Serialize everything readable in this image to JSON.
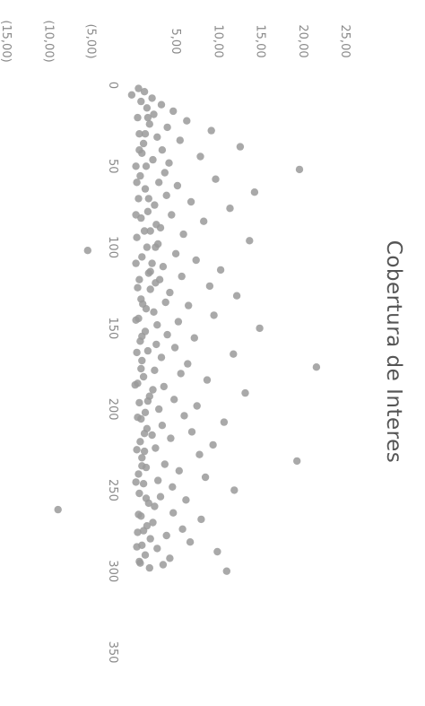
{
  "chart_data": {
    "type": "scatter",
    "title": "Cobertura de Interes",
    "xlabel": "",
    "ylabel": "",
    "xlim": [
      0,
      350
    ],
    "ylim": [
      -15,
      25
    ],
    "x_ticks": [
      "0",
      "50",
      "100",
      "150",
      "200",
      "250",
      "300",
      "350"
    ],
    "y_ticks": [
      "25,00",
      "20,00",
      "15,00",
      "10,00",
      "5,00",
      "",
      "(5,00)",
      "(10,00)",
      "(15,00)"
    ],
    "grid": false,
    "legend": "none",
    "orientation": "rotated 90 degrees clockwise",
    "marker_color": "#9a9a9a",
    "series": [
      {
        "points": [
          [
            2,
            0.5
          ],
          [
            4,
            1.2
          ],
          [
            6,
            -0.3
          ],
          [
            8,
            2.1
          ],
          [
            10,
            0.8
          ],
          [
            12,
            3.2
          ],
          [
            14,
            1.5
          ],
          [
            16,
            4.6
          ],
          [
            18,
            2.3
          ],
          [
            20,
            0.4
          ],
          [
            22,
            6.2
          ],
          [
            24,
            1.8
          ],
          [
            26,
            3.9
          ],
          [
            28,
            9.1
          ],
          [
            30,
            0.6
          ],
          [
            32,
            2.7
          ],
          [
            34,
            5.4
          ],
          [
            36,
            1.1
          ],
          [
            38,
            12.5
          ],
          [
            40,
            3.3
          ],
          [
            42,
            0.9
          ],
          [
            44,
            7.8
          ],
          [
            46,
            2.2
          ],
          [
            48,
            4.1
          ],
          [
            50,
            1.4
          ],
          [
            52,
            19.5
          ],
          [
            54,
            3.6
          ],
          [
            56,
            0.7
          ],
          [
            58,
            9.6
          ],
          [
            60,
            2.9
          ],
          [
            62,
            5.1
          ],
          [
            64,
            1.3
          ],
          [
            66,
            14.2
          ],
          [
            68,
            3.8
          ],
          [
            70,
            0.5
          ],
          [
            72,
            6.7
          ],
          [
            74,
            2.4
          ],
          [
            76,
            11.3
          ],
          [
            78,
            1.6
          ],
          [
            80,
            4.4
          ],
          [
            82,
            0.8
          ],
          [
            84,
            8.2
          ],
          [
            86,
            2.6
          ],
          [
            88,
            3.1
          ],
          [
            90,
            1.2
          ],
          [
            92,
            5.8
          ],
          [
            94,
            0.3
          ],
          [
            96,
            13.6
          ],
          [
            98,
            2.8
          ],
          [
            100,
            1.5
          ],
          [
            102,
            -5.5
          ],
          [
            104,
            4.9
          ],
          [
            106,
            0.9
          ],
          [
            108,
            7.3
          ],
          [
            110,
            2.1
          ],
          [
            112,
            3.4
          ],
          [
            114,
            10.2
          ],
          [
            116,
            1.7
          ],
          [
            118,
            5.6
          ],
          [
            120,
            0.6
          ],
          [
            122,
            2.5
          ],
          [
            124,
            8.9
          ],
          [
            126,
            1.9
          ],
          [
            128,
            4.2
          ],
          [
            130,
            12.1
          ],
          [
            132,
            0.8
          ],
          [
            134,
            3.7
          ],
          [
            136,
            6.4
          ],
          [
            138,
            1.4
          ],
          [
            140,
            2.3
          ],
          [
            142,
            9.4
          ],
          [
            144,
            0.5
          ],
          [
            146,
            5.2
          ],
          [
            148,
            2.7
          ],
          [
            150,
            14.8
          ],
          [
            152,
            1.3
          ],
          [
            154,
            3.9
          ],
          [
            156,
            7.1
          ],
          [
            158,
            0.7
          ],
          [
            160,
            2.6
          ],
          [
            162,
            4.8
          ],
          [
            164,
            1.6
          ],
          [
            166,
            11.7
          ],
          [
            168,
            3.2
          ],
          [
            170,
            0.9
          ],
          [
            172,
            6.3
          ],
          [
            174,
            21.5
          ],
          [
            176,
            2.4
          ],
          [
            178,
            5.5
          ],
          [
            180,
            1.1
          ],
          [
            182,
            8.6
          ],
          [
            184,
            0.4
          ],
          [
            186,
            3.5
          ],
          [
            188,
            2.2
          ],
          [
            190,
            13.1
          ],
          [
            192,
            1.8
          ],
          [
            194,
            4.7
          ],
          [
            196,
            0.6
          ],
          [
            198,
            7.4
          ],
          [
            200,
            2.9
          ],
          [
            202,
            1.3
          ],
          [
            204,
            5.9
          ],
          [
            206,
            0.8
          ],
          [
            208,
            10.6
          ],
          [
            210,
            3.3
          ],
          [
            212,
            1.5
          ],
          [
            214,
            6.8
          ],
          [
            216,
            2.1
          ],
          [
            218,
            4.3
          ],
          [
            220,
            0.7
          ],
          [
            222,
            9.3
          ],
          [
            224,
            2.5
          ],
          [
            226,
            1.2
          ],
          [
            228,
            7.7
          ],
          [
            230,
            0.9
          ],
          [
            232,
            19.2
          ],
          [
            234,
            3.6
          ],
          [
            236,
            1.4
          ],
          [
            238,
            5.3
          ],
          [
            240,
            0.5
          ],
          [
            242,
            8.4
          ],
          [
            244,
            2.8
          ],
          [
            246,
            1.1
          ],
          [
            248,
            4.5
          ],
          [
            250,
            11.8
          ],
          [
            252,
            0.6
          ],
          [
            254,
            3.1
          ],
          [
            256,
            6.1
          ],
          [
            258,
            1.7
          ],
          [
            260,
            2.4
          ],
          [
            262,
            -9.0
          ],
          [
            264,
            4.6
          ],
          [
            266,
            0.8
          ],
          [
            268,
            7.9
          ],
          [
            270,
            2.2
          ],
          [
            272,
            1.5
          ],
          [
            274,
            5.7
          ],
          [
            276,
            0.4
          ],
          [
            278,
            3.8
          ],
          [
            280,
            1.9
          ],
          [
            282,
            6.6
          ],
          [
            284,
            0.9
          ],
          [
            286,
            2.7
          ],
          [
            288,
            9.8
          ],
          [
            290,
            1.3
          ],
          [
            292,
            4.2
          ],
          [
            294,
            0.6
          ],
          [
            296,
            3.4
          ],
          [
            298,
            1.8
          ],
          [
            300,
            10.9
          ],
          [
            110,
            0.2
          ],
          [
            115,
            1.9
          ],
          [
            125,
            0.4
          ],
          [
            135,
            1.0
          ],
          [
            145,
            0.2
          ],
          [
            155,
            0.9
          ],
          [
            165,
            0.3
          ],
          [
            175,
            0.8
          ],
          [
            185,
            0.1
          ],
          [
            195,
            1.6
          ],
          [
            205,
            0.4
          ],
          [
            215,
            1.2
          ],
          [
            225,
            0.3
          ],
          [
            235,
            0.9
          ],
          [
            245,
            0.2
          ],
          [
            255,
            1.4
          ],
          [
            265,
            0.5
          ],
          [
            275,
            1.1
          ],
          [
            285,
            0.3
          ],
          [
            295,
            0.7
          ],
          [
            60,
            0.3
          ],
          [
            70,
            1.7
          ],
          [
            80,
            0.2
          ],
          [
            90,
            1.9
          ],
          [
            40,
            0.6
          ],
          [
            30,
            1.3
          ],
          [
            20,
            1.6
          ],
          [
            50,
            0.2
          ],
          [
            100,
            2.5
          ],
          [
            120,
            3.0
          ]
        ]
      }
    ]
  }
}
